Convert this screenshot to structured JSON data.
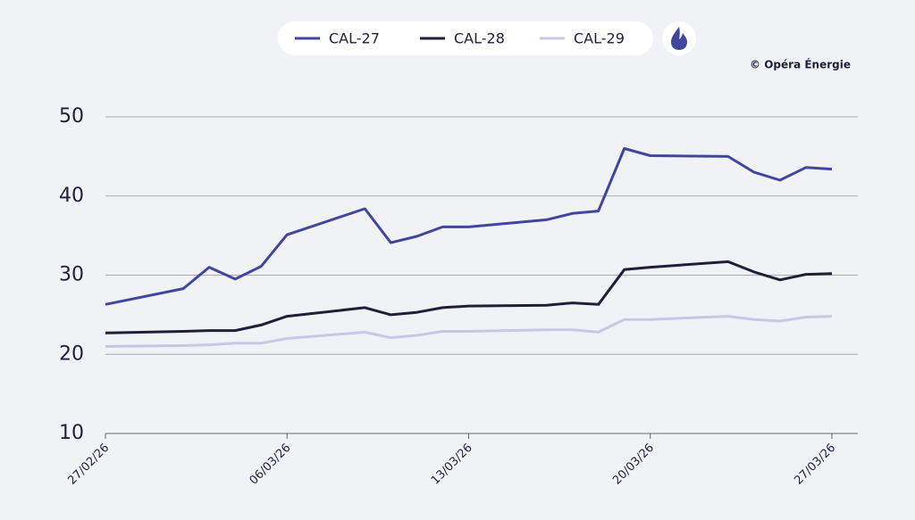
{
  "chart_data": {
    "type": "line",
    "credit": "© Opéra Énergie",
    "x": [
      "27/02/26",
      "02/03/26",
      "03/03/26",
      "04/03/26",
      "05/03/26",
      "06/03/26",
      "09/03/26",
      "10/03/26",
      "11/03/26",
      "12/03/26",
      "13/03/26",
      "16/03/26",
      "17/03/26",
      "18/03/26",
      "19/03/26",
      "20/03/26",
      "23/03/26",
      "24/03/26",
      "25/03/26",
      "26/03/26",
      "27/03/26"
    ],
    "series": [
      {
        "name": "CAL-27",
        "color": "#4046a0",
        "values": [
          26.3,
          28.3,
          31.0,
          29.5,
          31.1,
          35.1,
          38.4,
          34.1,
          34.9,
          36.1,
          36.1,
          37.0,
          37.8,
          38.1,
          46.0,
          45.1,
          45.0,
          43.0,
          42.0,
          43.6,
          43.4
        ]
      },
      {
        "name": "CAL-28",
        "color": "#1f1f3a",
        "values": [
          22.7,
          22.9,
          23.0,
          23.0,
          23.7,
          24.8,
          25.9,
          25.0,
          25.3,
          25.9,
          26.1,
          26.2,
          26.5,
          26.3,
          30.7,
          31.0,
          31.7,
          30.4,
          29.4,
          30.1,
          30.2
        ]
      },
      {
        "name": "CAL-29",
        "color": "#c8c8e6",
        "values": [
          21.0,
          21.1,
          21.2,
          21.4,
          21.4,
          22.0,
          22.8,
          22.1,
          22.4,
          22.9,
          22.9,
          23.1,
          23.1,
          22.8,
          24.4,
          24.4,
          24.8,
          24.4,
          24.2,
          24.7,
          24.8
        ]
      }
    ],
    "xlim": [
      "27/02/26",
      "28/03/26"
    ],
    "xticks": [
      "27/02/26",
      "06/03/26",
      "13/03/26",
      "20/03/26",
      "27/03/26"
    ],
    "ylim": [
      10,
      50
    ],
    "yticks": [
      10,
      20,
      30,
      40,
      50
    ],
    "grid": true
  }
}
